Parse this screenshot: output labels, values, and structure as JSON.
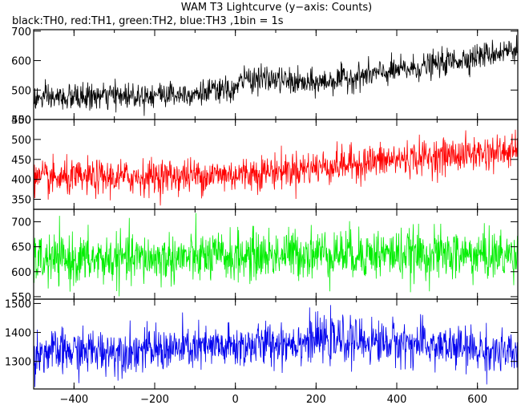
{
  "chart_data": {
    "type": "line",
    "title": "WAM T3 Lightcurve (y−axis: Counts)",
    "subtitle": "black:TH0, red:TH1, green:TH2, blue:TH3 ,1bin = 1s",
    "xlabel": "",
    "ylabel": "",
    "xlim": [
      -500,
      700
    ],
    "x_ticks": [
      -400,
      -200,
      0,
      200,
      400,
      600
    ],
    "bin_size_s": 1,
    "grid": false,
    "panels": [
      {
        "name": "TH0",
        "color": "#000000",
        "ylim": [
          400,
          705
        ],
        "y_ticks": [
          400,
          500,
          600,
          700
        ],
        "mean_profile": [
          {
            "x": -500,
            "y": 470
          },
          {
            "x": -300,
            "y": 480
          },
          {
            "x": -100,
            "y": 490
          },
          {
            "x": 0,
            "y": 500
          },
          {
            "x": 20,
            "y": 540
          },
          {
            "x": 100,
            "y": 535
          },
          {
            "x": 180,
            "y": 520
          },
          {
            "x": 300,
            "y": 545
          },
          {
            "x": 450,
            "y": 575
          },
          {
            "x": 600,
            "y": 615
          },
          {
            "x": 700,
            "y": 640
          }
        ],
        "noise_sd": 22
      },
      {
        "name": "TH1",
        "color": "#ff0000",
        "ylim": [
          325,
          550
        ],
        "y_ticks": [
          350,
          400,
          450,
          500,
          550
        ],
        "mean_profile": [
          {
            "x": -500,
            "y": 400
          },
          {
            "x": 0,
            "y": 412
          },
          {
            "x": 200,
            "y": 430
          },
          {
            "x": 400,
            "y": 450
          },
          {
            "x": 600,
            "y": 465
          },
          {
            "x": 700,
            "y": 470
          }
        ],
        "noise_sd": 22
      },
      {
        "name": "TH2",
        "color": "#00ee00",
        "ylim": [
          545,
          725
        ],
        "y_ticks": [
          550,
          600,
          650,
          700
        ],
        "mean_profile": [
          {
            "x": -500,
            "y": 622
          },
          {
            "x": -200,
            "y": 626
          },
          {
            "x": 0,
            "y": 630
          },
          {
            "x": 200,
            "y": 638
          },
          {
            "x": 400,
            "y": 635
          },
          {
            "x": 700,
            "y": 632
          }
        ],
        "noise_sd": 25
      },
      {
        "name": "TH3",
        "color": "#0000ee",
        "ylim": [
          1205,
          1515
        ],
        "y_ticks": [
          1300,
          1400,
          1500
        ],
        "mean_profile": [
          {
            "x": -500,
            "y": 1330
          },
          {
            "x": -200,
            "y": 1340
          },
          {
            "x": 0,
            "y": 1350
          },
          {
            "x": 200,
            "y": 1375
          },
          {
            "x": 400,
            "y": 1365
          },
          {
            "x": 600,
            "y": 1340
          },
          {
            "x": 700,
            "y": 1320
          }
        ],
        "noise_sd": 38
      }
    ]
  }
}
